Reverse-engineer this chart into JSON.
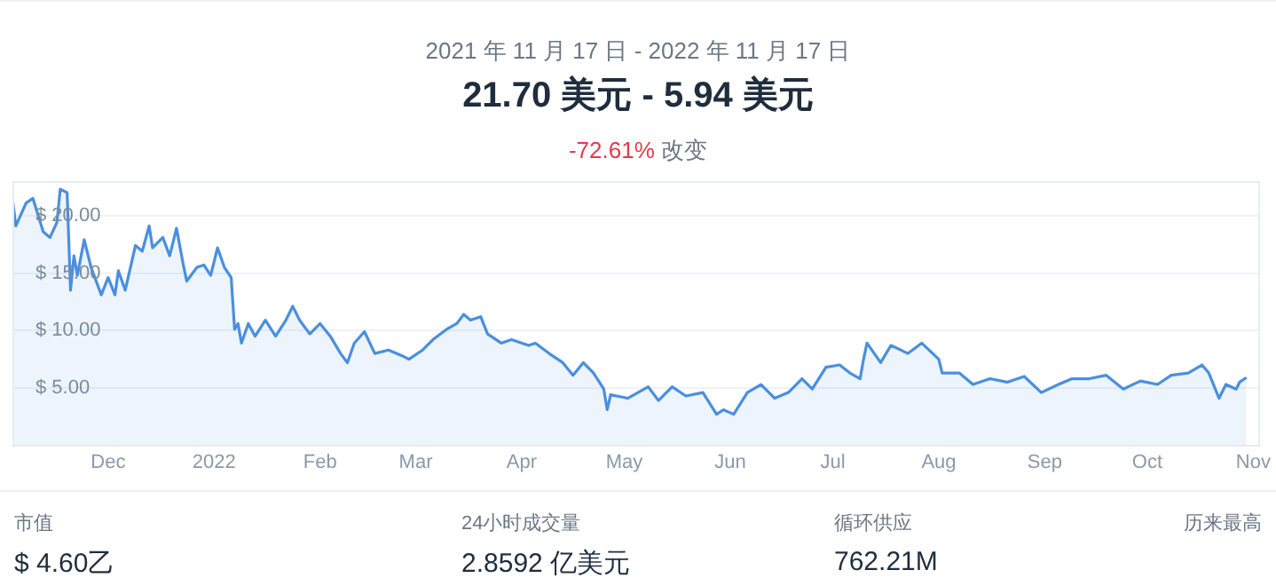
{
  "chart_data": {
    "type": "area",
    "subtitle": "2021 年 11 月 17 日 - 2022 年 11 月 17 日",
    "title": "21.70 美元 - 5.94 美元",
    "annotations": [
      "-72.61% 改变",
      "市值",
      "$ 4.60乙",
      "24小时成交量",
      "2.8592 亿美元",
      "循环供应",
      "762.21M",
      "历来最高"
    ],
    "x": [
      "2021-11-17",
      "2021-11-18",
      "2021-11-21",
      "2021-11-23",
      "2021-11-26",
      "2021-11-28",
      "2021-11-30",
      "2021-12-01",
      "2021-12-03",
      "2021-12-04",
      "2021-12-05",
      "2021-12-06",
      "2021-12-08",
      "2021-12-10",
      "2021-12-13",
      "2021-12-15",
      "2021-12-17",
      "2021-12-18",
      "2021-12-20",
      "2021-12-23",
      "2021-12-25",
      "2021-12-27",
      "2021-12-28",
      "2021-12-31",
      "2022-01-02",
      "2022-01-04",
      "2022-01-06",
      "2022-01-07",
      "2022-01-10",
      "2022-01-12",
      "2022-01-14",
      "2022-01-16",
      "2022-01-18",
      "2022-01-20",
      "2022-01-21",
      "2022-01-22",
      "2022-01-23",
      "2022-01-25",
      "2022-01-27",
      "2022-01-30",
      "2022-02-02",
      "2022-02-05",
      "2022-02-07",
      "2022-02-09",
      "2022-02-12",
      "2022-02-15",
      "2022-02-18",
      "2022-02-21",
      "2022-02-23",
      "2022-02-25",
      "2022-02-28",
      "2022-03-03",
      "2022-03-07",
      "2022-03-11",
      "2022-03-13",
      "2022-03-17",
      "2022-03-20",
      "2022-03-24",
      "2022-03-27",
      "2022-03-29",
      "2022-03-31",
      "2022-04-03",
      "2022-04-05",
      "2022-04-09",
      "2022-04-12",
      "2022-04-17",
      "2022-04-19",
      "2022-04-23",
      "2022-04-27",
      "2022-04-30",
      "2022-05-03",
      "2022-05-06",
      "2022-05-09",
      "2022-05-10",
      "2022-05-11",
      "2022-05-16",
      "2022-05-22",
      "2022-05-25",
      "2022-05-29",
      "2022-06-02",
      "2022-06-07",
      "2022-06-11",
      "2022-06-13",
      "2022-06-16",
      "2022-06-20",
      "2022-06-24",
      "2022-06-28",
      "2022-07-02",
      "2022-07-06",
      "2022-07-09",
      "2022-07-13",
      "2022-07-17",
      "2022-07-20",
      "2022-07-23",
      "2022-07-24",
      "2022-07-25",
      "2022-07-29",
      "2022-08-01",
      "2022-08-06",
      "2022-08-10",
      "2022-08-15",
      "2022-08-16",
      "2022-08-21",
      "2022-08-25",
      "2022-08-30",
      "2022-09-04",
      "2022-09-09",
      "2022-09-14",
      "2022-09-19",
      "2022-09-23",
      "2022-09-28",
      "2022-10-03",
      "2022-10-08",
      "2022-10-13",
      "2022-10-18",
      "2022-10-22",
      "2022-10-27",
      "2022-10-31",
      "2022-11-02",
      "2022-11-05",
      "2022-11-07",
      "2022-11-10",
      "2022-11-11",
      "2022-11-13"
    ],
    "series": [
      {
        "color": "#4a8fdf",
        "values": [
          21.5,
          19.1,
          21.1,
          21.5,
          18.6,
          18.1,
          19.4,
          22.3,
          22.0,
          13.5,
          16.5,
          14.8,
          17.9,
          15.5,
          13.1,
          14.6,
          13.1,
          15.2,
          13.5,
          17.4,
          16.9,
          19.1,
          17.2,
          18.1,
          16.5,
          18.9,
          15.7,
          14.3,
          15.5,
          15.7,
          14.8,
          17.2,
          15.5,
          14.6,
          10.1,
          10.6,
          8.9,
          10.6,
          9.5,
          10.9,
          9.5,
          10.9,
          12.1,
          10.9,
          9.7,
          10.6,
          9.5,
          8.0,
          7.2,
          8.9,
          9.9,
          8.0,
          8.3,
          7.8,
          7.5,
          8.3,
          9.2,
          10.1,
          10.6,
          11.4,
          10.9,
          11.2,
          9.7,
          8.9,
          9.2,
          8.7,
          8.9,
          8.0,
          7.2,
          6.1,
          7.2,
          6.3,
          4.9,
          3.1,
          4.4,
          4.1,
          5.1,
          3.9,
          5.1,
          4.3,
          4.6,
          2.7,
          3.1,
          2.7,
          4.6,
          5.3,
          4.1,
          4.6,
          5.8,
          4.9,
          6.8,
          7.0,
          6.3,
          5.8,
          7.5,
          8.9,
          7.2,
          8.7,
          8.0,
          8.9,
          7.5,
          6.3,
          6.3,
          5.3,
          5.8,
          5.5,
          6.0,
          4.6,
          5.3,
          5.8,
          5.8,
          6.1,
          4.9,
          5.6,
          5.3,
          6.1,
          6.3,
          7.0,
          6.3,
          4.1,
          5.3,
          4.9,
          5.5,
          5.9
        ]
      }
    ],
    "xlim": [
      "2021-11-17",
      "2022-11-17"
    ],
    "xticks": [
      {
        "value": "2021-12-15",
        "label": "Dec"
      },
      {
        "value": "2022-01-15",
        "label": "2022"
      },
      {
        "value": "2022-02-15",
        "label": "Feb"
      },
      {
        "value": "2022-03-15",
        "label": "Mar"
      },
      {
        "value": "2022-04-15",
        "label": "Apr"
      },
      {
        "value": "2022-05-15",
        "label": "May"
      },
      {
        "value": "2022-06-15",
        "label": "Jun"
      },
      {
        "value": "2022-07-15",
        "label": "Jul"
      },
      {
        "value": "2022-08-15",
        "label": "Aug"
      },
      {
        "value": "2022-09-15",
        "label": "Sep"
      },
      {
        "value": "2022-10-15",
        "label": "Oct"
      },
      {
        "value": "2022-11-15",
        "label": "Nov"
      }
    ],
    "ylim": [
      0,
      23
    ],
    "yticks": [
      {
        "value": 5,
        "label": "$ 5.00"
      },
      {
        "value": 10,
        "label": "$ 10.00"
      },
      {
        "value": 15,
        "label": "$ 15.00"
      },
      {
        "value": 20,
        "label": "$ 20.00"
      }
    ],
    "grid": "y"
  }
}
